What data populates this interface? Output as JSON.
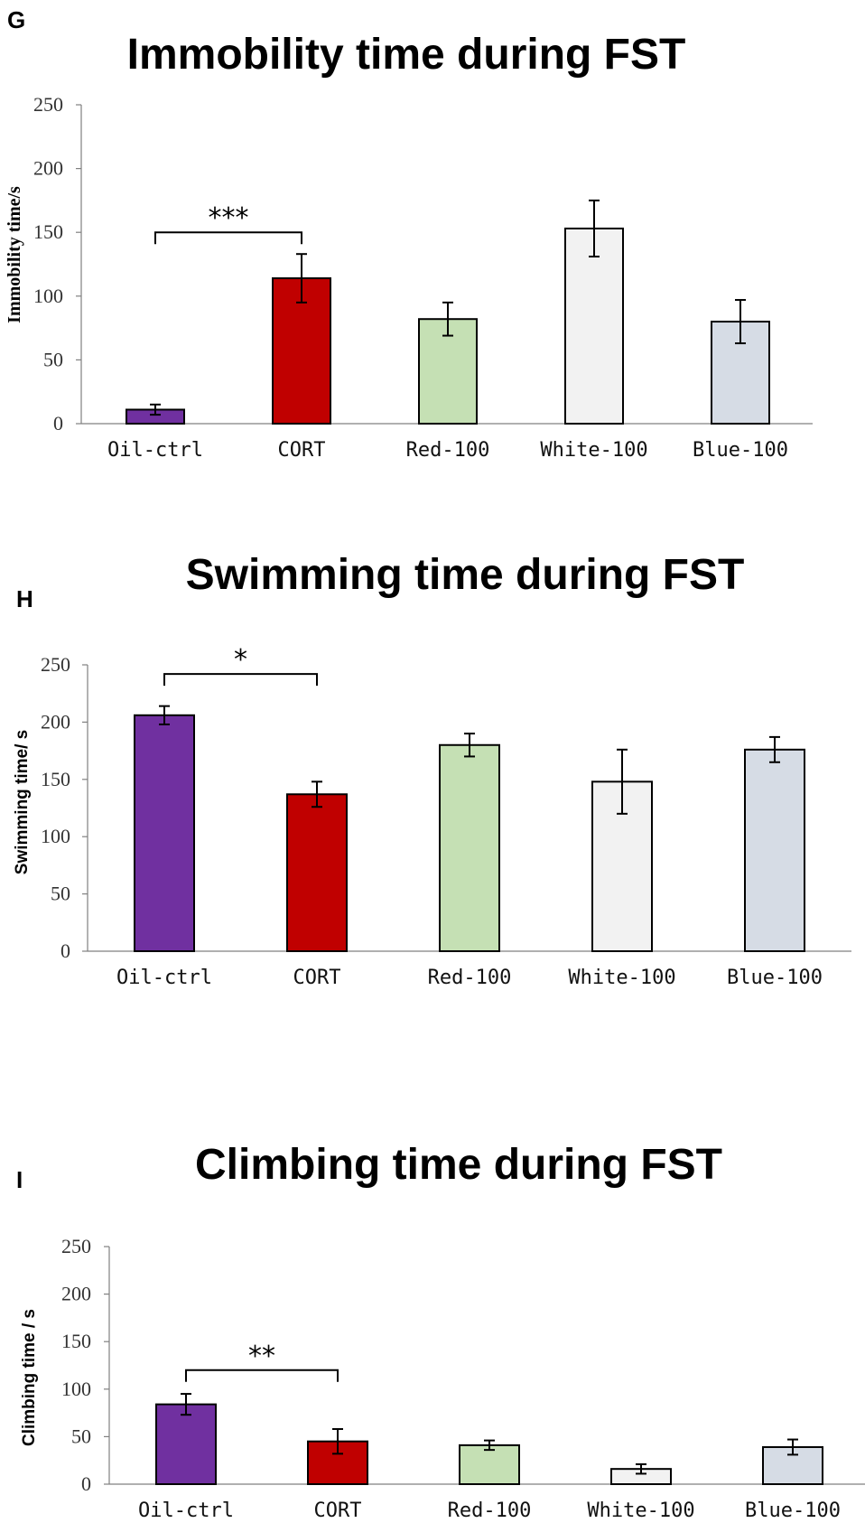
{
  "colors": {
    "Oil-ctrl": "#7030a0",
    "CORT": "#c00000",
    "Red-100": "#c5e0b4",
    "White-100": "#f2f2f2",
    "Blue-100": "#d6dce5"
  },
  "chart_data": [
    {
      "type": "bar",
      "panel": "G",
      "title": "Immobility time during FST",
      "ylabel": "Immobility time/s",
      "xlabel": "",
      "ylim": [
        0,
        250
      ],
      "yticks": [
        0,
        50,
        100,
        150,
        200,
        250
      ],
      "grid": false,
      "categories": [
        "Oil-ctrl",
        "CORT",
        "Red-100",
        "White-100",
        "Blue-100"
      ],
      "values": [
        11,
        114,
        82,
        153,
        80
      ],
      "errors": [
        4,
        19,
        13,
        22,
        17
      ],
      "significance": [
        {
          "from": 0,
          "to": 1,
          "label": "***",
          "level": 150
        }
      ]
    },
    {
      "type": "bar",
      "panel": "H",
      "title": "Swimming time during FST",
      "ylabel": "Swimming time/ s",
      "xlabel": "",
      "ylim": [
        0,
        250
      ],
      "yticks": [
        0,
        50,
        100,
        150,
        200,
        250
      ],
      "grid": false,
      "categories": [
        "Oil-ctrl",
        "CORT",
        "Red-100",
        "White-100",
        "Blue-100"
      ],
      "values": [
        206,
        137,
        180,
        148,
        176
      ],
      "errors": [
        8,
        11,
        10,
        28,
        11
      ],
      "significance": [
        {
          "from": 0,
          "to": 1,
          "label": "*",
          "level": 242
        }
      ]
    },
    {
      "type": "bar",
      "panel": "I",
      "title": "Climbing time during FST",
      "ylabel": "Climbing time / s",
      "xlabel": "",
      "ylim": [
        0,
        250
      ],
      "yticks": [
        0,
        50,
        100,
        150,
        200,
        250
      ],
      "grid": false,
      "categories": [
        "Oil-ctrl",
        "CORT",
        "Red-100",
        "White-100",
        "Blue-100"
      ],
      "values": [
        84,
        45,
        41,
        16,
        39
      ],
      "errors": [
        11,
        13,
        5,
        5,
        8
      ],
      "significance": [
        {
          "from": 0,
          "to": 1,
          "label": "**",
          "level": 120
        }
      ]
    }
  ]
}
